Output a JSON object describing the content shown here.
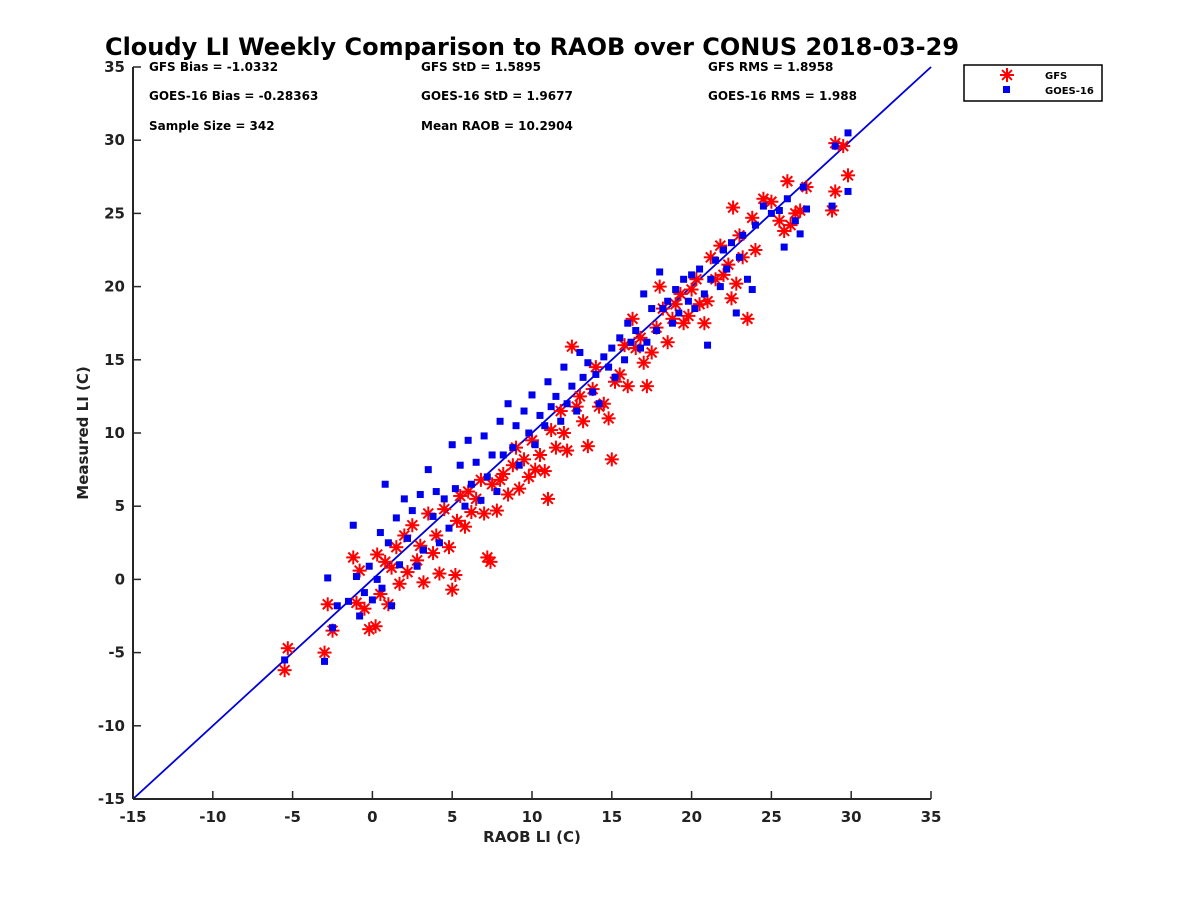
{
  "chart_data": {
    "type": "scatter",
    "title": "Cloudy LI Weekly Comparison to RAOB over CONUS 2018-03-29",
    "xlabel": "RAOB LI (C)",
    "ylabel": "Measured LI (C)",
    "xlim": [
      -15,
      35
    ],
    "ylim": [
      -15,
      35
    ],
    "xticks": [
      -15,
      -10,
      -5,
      0,
      5,
      10,
      15,
      20,
      25,
      30,
      35
    ],
    "yticks": [
      -15,
      -10,
      -5,
      0,
      5,
      10,
      15,
      20,
      25,
      30,
      35
    ],
    "grid": false,
    "legend_position": "outside top-right",
    "reference_line": {
      "x": [
        -15,
        35
      ],
      "y": [
        -15,
        35
      ],
      "color": "#0000dd"
    },
    "stats": [
      "GFS Bias = -1.0332",
      "GFS StD = 1.5895",
      "GFS RMS = 1.8958",
      "GOES-16 Bias = -0.28363",
      "GOES-16 StD = 1.9677",
      "GOES-16 RMS = 1.988",
      "Sample Size = 342",
      "Mean RAOB = 10.2904"
    ],
    "series": [
      {
        "name": "GFS",
        "marker": "asterisk",
        "color": "#ff0000",
        "points": [
          [
            -5.5,
            -6.2
          ],
          [
            -5.3,
            -4.7
          ],
          [
            -3.0,
            -5.0
          ],
          [
            -2.8,
            -1.7
          ],
          [
            -2.5,
            -3.5
          ],
          [
            -1.2,
            1.5
          ],
          [
            -1.0,
            -1.6
          ],
          [
            -0.8,
            0.6
          ],
          [
            -0.5,
            -2.0
          ],
          [
            -0.2,
            -3.4
          ],
          [
            0.2,
            -3.2
          ],
          [
            0.3,
            1.7
          ],
          [
            0.5,
            -1.0
          ],
          [
            0.8,
            1.2
          ],
          [
            1.0,
            -1.7
          ],
          [
            1.2,
            0.8
          ],
          [
            1.5,
            2.2
          ],
          [
            1.7,
            -0.3
          ],
          [
            2.0,
            3.0
          ],
          [
            2.2,
            0.5
          ],
          [
            2.5,
            3.7
          ],
          [
            2.8,
            1.3
          ],
          [
            3.0,
            2.3
          ],
          [
            3.2,
            -0.2
          ],
          [
            3.5,
            4.5
          ],
          [
            3.8,
            1.8
          ],
          [
            4.0,
            3.0
          ],
          [
            4.2,
            0.4
          ],
          [
            4.5,
            4.8
          ],
          [
            4.8,
            2.2
          ],
          [
            5.0,
            -0.7
          ],
          [
            5.2,
            0.3
          ],
          [
            5.3,
            4.0
          ],
          [
            5.5,
            5.7
          ],
          [
            5.8,
            3.6
          ],
          [
            6.0,
            6.0
          ],
          [
            6.2,
            4.6
          ],
          [
            6.5,
            5.5
          ],
          [
            6.8,
            6.8
          ],
          [
            7.0,
            4.5
          ],
          [
            7.2,
            1.5
          ],
          [
            7.4,
            1.2
          ],
          [
            7.5,
            6.5
          ],
          [
            7.8,
            4.7
          ],
          [
            8.0,
            6.8
          ],
          [
            8.2,
            7.2
          ],
          [
            8.5,
            5.8
          ],
          [
            8.8,
            7.8
          ],
          [
            9.0,
            9.0
          ],
          [
            9.2,
            6.2
          ],
          [
            9.5,
            8.2
          ],
          [
            9.8,
            7.0
          ],
          [
            10.0,
            9.5
          ],
          [
            10.2,
            7.5
          ],
          [
            10.5,
            8.5
          ],
          [
            10.8,
            7.4
          ],
          [
            11.0,
            5.5
          ],
          [
            11.2,
            10.2
          ],
          [
            11.5,
            9.0
          ],
          [
            11.8,
            11.5
          ],
          [
            12.0,
            10.0
          ],
          [
            12.2,
            8.8
          ],
          [
            12.5,
            15.9
          ],
          [
            12.8,
            11.8
          ],
          [
            13.0,
            12.5
          ],
          [
            13.2,
            10.8
          ],
          [
            13.5,
            9.1
          ],
          [
            13.8,
            13.0
          ],
          [
            14.0,
            14.5
          ],
          [
            14.2,
            11.8
          ],
          [
            14.5,
            12.0
          ],
          [
            14.8,
            11.0
          ],
          [
            15.0,
            8.2
          ],
          [
            15.2,
            13.5
          ],
          [
            15.5,
            14.0
          ],
          [
            15.8,
            16.0
          ],
          [
            16.0,
            13.2
          ],
          [
            16.3,
            17.8
          ],
          [
            16.5,
            15.8
          ],
          [
            16.8,
            16.5
          ],
          [
            17.0,
            14.8
          ],
          [
            17.2,
            13.2
          ],
          [
            17.5,
            15.5
          ],
          [
            17.8,
            17.2
          ],
          [
            18.0,
            20.0
          ],
          [
            18.2,
            18.5
          ],
          [
            18.5,
            16.2
          ],
          [
            18.8,
            17.8
          ],
          [
            19.0,
            18.8
          ],
          [
            19.3,
            19.5
          ],
          [
            19.5,
            17.5
          ],
          [
            19.8,
            18.0
          ],
          [
            20.0,
            19.8
          ],
          [
            20.3,
            20.5
          ],
          [
            20.5,
            18.8
          ],
          [
            20.8,
            17.5
          ],
          [
            21.0,
            19.0
          ],
          [
            21.2,
            22.0
          ],
          [
            21.5,
            20.5
          ],
          [
            21.8,
            22.8
          ],
          [
            22.0,
            20.8
          ],
          [
            22.3,
            21.5
          ],
          [
            22.5,
            19.2
          ],
          [
            22.6,
            25.4
          ],
          [
            22.8,
            20.2
          ],
          [
            23.0,
            23.5
          ],
          [
            23.2,
            22.0
          ],
          [
            23.5,
            17.8
          ],
          [
            23.8,
            24.7
          ],
          [
            24.0,
            22.5
          ],
          [
            24.5,
            26.0
          ],
          [
            25.0,
            25.8
          ],
          [
            25.5,
            24.5
          ],
          [
            25.8,
            23.8
          ],
          [
            26.0,
            27.2
          ],
          [
            26.2,
            24.2
          ],
          [
            26.5,
            25.0
          ],
          [
            26.8,
            25.2
          ],
          [
            27.2,
            26.8
          ],
          [
            28.8,
            25.2
          ],
          [
            29.0,
            29.8
          ],
          [
            29.0,
            26.5
          ],
          [
            29.8,
            27.6
          ],
          [
            29.5,
            29.6
          ]
        ]
      },
      {
        "name": "GOES-16",
        "marker": "square",
        "color": "#0000ee",
        "points": [
          [
            -5.5,
            -5.5
          ],
          [
            -3.0,
            -5.6
          ],
          [
            -2.8,
            0.1
          ],
          [
            -2.5,
            -3.3
          ],
          [
            -2.2,
            -1.8
          ],
          [
            -1.5,
            -1.5
          ],
          [
            -1.2,
            3.7
          ],
          [
            -1.0,
            0.2
          ],
          [
            -0.8,
            -2.5
          ],
          [
            -0.5,
            -0.9
          ],
          [
            -0.2,
            0.9
          ],
          [
            0.0,
            -1.4
          ],
          [
            0.3,
            0.0
          ],
          [
            0.5,
            3.2
          ],
          [
            0.6,
            -0.6
          ],
          [
            0.8,
            6.5
          ],
          [
            1.0,
            2.5
          ],
          [
            1.2,
            -1.8
          ],
          [
            1.5,
            4.2
          ],
          [
            1.7,
            1.0
          ],
          [
            2.0,
            5.5
          ],
          [
            2.2,
            2.8
          ],
          [
            2.5,
            4.7
          ],
          [
            2.8,
            0.9
          ],
          [
            3.0,
            5.8
          ],
          [
            3.2,
            2.0
          ],
          [
            3.5,
            7.5
          ],
          [
            3.8,
            4.3
          ],
          [
            4.0,
            6.0
          ],
          [
            4.2,
            2.5
          ],
          [
            4.5,
            5.5
          ],
          [
            4.8,
            3.5
          ],
          [
            5.0,
            9.2
          ],
          [
            5.2,
            6.2
          ],
          [
            5.5,
            7.8
          ],
          [
            5.8,
            5.0
          ],
          [
            6.0,
            9.5
          ],
          [
            6.2,
            6.5
          ],
          [
            6.5,
            8.0
          ],
          [
            6.8,
            5.4
          ],
          [
            7.0,
            9.8
          ],
          [
            7.2,
            7.0
          ],
          [
            7.5,
            8.5
          ],
          [
            7.8,
            6.0
          ],
          [
            8.0,
            10.8
          ],
          [
            8.2,
            8.5
          ],
          [
            8.5,
            12.0
          ],
          [
            8.8,
            9.0
          ],
          [
            9.0,
            10.5
          ],
          [
            9.2,
            7.8
          ],
          [
            9.5,
            11.5
          ],
          [
            9.8,
            10.0
          ],
          [
            10.0,
            12.6
          ],
          [
            10.2,
            9.2
          ],
          [
            10.5,
            11.2
          ],
          [
            10.8,
            10.5
          ],
          [
            11.0,
            13.5
          ],
          [
            11.2,
            11.8
          ],
          [
            11.5,
            12.5
          ],
          [
            11.8,
            10.8
          ],
          [
            12.0,
            14.5
          ],
          [
            12.2,
            12.0
          ],
          [
            12.5,
            13.2
          ],
          [
            12.8,
            11.5
          ],
          [
            13.0,
            15.5
          ],
          [
            13.2,
            13.8
          ],
          [
            13.5,
            14.8
          ],
          [
            13.8,
            12.8
          ],
          [
            14.0,
            14.0
          ],
          [
            14.2,
            12.0
          ],
          [
            14.5,
            15.2
          ],
          [
            14.8,
            14.5
          ],
          [
            15.0,
            15.8
          ],
          [
            15.2,
            13.8
          ],
          [
            15.5,
            16.5
          ],
          [
            15.8,
            15.0
          ],
          [
            16.0,
            17.5
          ],
          [
            16.2,
            16.2
          ],
          [
            16.5,
            17.0
          ],
          [
            16.8,
            15.8
          ],
          [
            17.0,
            19.5
          ],
          [
            17.2,
            16.2
          ],
          [
            17.5,
            18.5
          ],
          [
            17.8,
            17.0
          ],
          [
            18.0,
            21.0
          ],
          [
            18.2,
            18.5
          ],
          [
            18.5,
            19.0
          ],
          [
            18.8,
            17.5
          ],
          [
            19.0,
            19.8
          ],
          [
            19.2,
            18.2
          ],
          [
            19.5,
            20.5
          ],
          [
            19.8,
            19.0
          ],
          [
            20.0,
            20.8
          ],
          [
            20.2,
            18.5
          ],
          [
            20.5,
            21.2
          ],
          [
            20.8,
            19.5
          ],
          [
            21.0,
            16.0
          ],
          [
            21.2,
            20.5
          ],
          [
            21.5,
            21.8
          ],
          [
            21.8,
            20.0
          ],
          [
            22.0,
            22.5
          ],
          [
            22.2,
            21.2
          ],
          [
            22.5,
            23.0
          ],
          [
            22.8,
            18.2
          ],
          [
            23.0,
            22.0
          ],
          [
            23.2,
            23.5
          ],
          [
            23.5,
            20.5
          ],
          [
            23.8,
            19.8
          ],
          [
            24.0,
            24.2
          ],
          [
            24.5,
            25.5
          ],
          [
            25.0,
            25.0
          ],
          [
            25.5,
            25.2
          ],
          [
            25.8,
            22.7
          ],
          [
            26.0,
            26.0
          ],
          [
            26.5,
            24.5
          ],
          [
            26.8,
            23.6
          ],
          [
            27.2,
            25.3
          ],
          [
            27.0,
            26.8
          ],
          [
            28.8,
            25.5
          ],
          [
            29.0,
            29.6
          ],
          [
            29.8,
            30.5
          ],
          [
            29.8,
            26.5
          ]
        ]
      }
    ]
  },
  "legend": {
    "items": [
      {
        "label": "GFS",
        "marker": "asterisk",
        "color": "#ff0000"
      },
      {
        "label": "GOES-16",
        "marker": "square",
        "color": "#0000ee"
      }
    ]
  }
}
